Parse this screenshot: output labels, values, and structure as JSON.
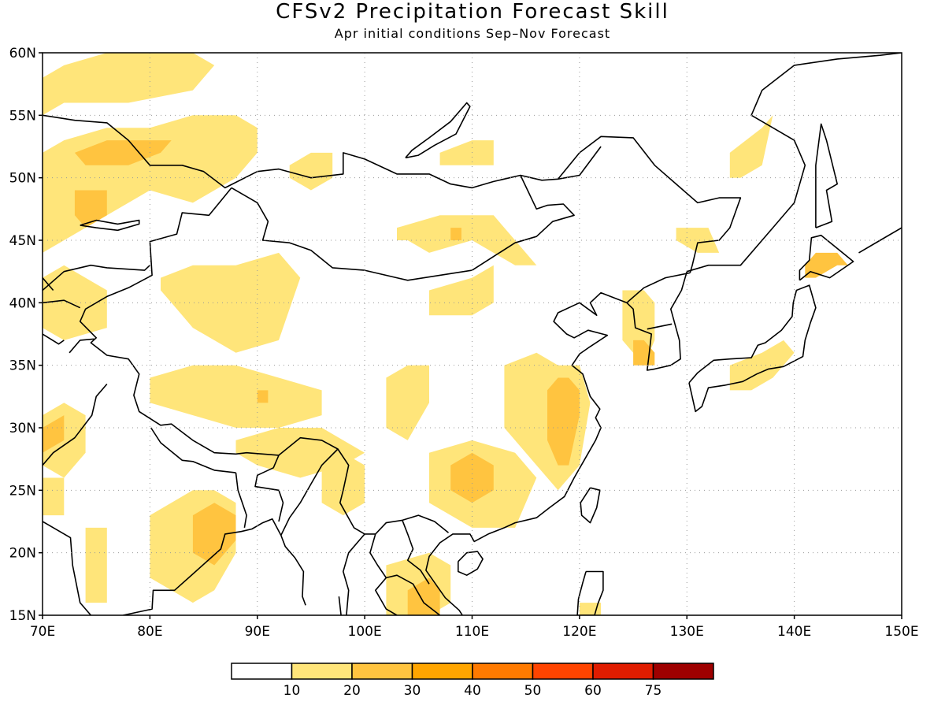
{
  "title": "CFSv2 Precipitation Forecast Skill",
  "subtitle": "Apr initial conditions  Sep–Nov Forecast",
  "map": {
    "lon_range": [
      70,
      150
    ],
    "lat_range": [
      15,
      60
    ],
    "lat_ticks": [
      "60N",
      "55N",
      "50N",
      "45N",
      "40N",
      "35N",
      "30N",
      "25N",
      "20N",
      "15N"
    ],
    "lat_values": [
      60,
      55,
      50,
      45,
      40,
      35,
      30,
      25,
      20,
      15
    ],
    "lon_ticks": [
      "70E",
      "80E",
      "90E",
      "100E",
      "110E",
      "120E",
      "130E",
      "140E",
      "150E"
    ],
    "lon_values": [
      70,
      80,
      90,
      100,
      110,
      120,
      130,
      140,
      150
    ],
    "grid": "dotted"
  },
  "colorbar": {
    "colors": [
      "#ffffff",
      "#ffe57a",
      "#ffc440",
      "#ffa500",
      "#ff7a00",
      "#ff4400",
      "#e01c00",
      "#9e0000"
    ],
    "labels": [
      "10",
      "20",
      "30",
      "40",
      "50",
      "60",
      "75"
    ]
  },
  "chart_data": {
    "type": "heatmap",
    "title": "CFSv2 Precipitation Forecast Skill",
    "subtitle": "Apr initial conditions  Sep–Nov Forecast",
    "xrange": [
      70,
      150
    ],
    "yrange": [
      15,
      60
    ],
    "levels": [
      10,
      20,
      30,
      40,
      50,
      60,
      75
    ],
    "regions": [
      {
        "level": 10,
        "lon": [
          70,
          72,
          76,
          80,
          84,
          86,
          84,
          78,
          72,
          70
        ],
        "lat": [
          58,
          59,
          60,
          60,
          60,
          59,
          57,
          56,
          56,
          55
        ]
      },
      {
        "level": 10,
        "lon": [
          70,
          72,
          76,
          80,
          84,
          88,
          90,
          90,
          88,
          84,
          80,
          76,
          74,
          72,
          70
        ],
        "lat": [
          52,
          53,
          54,
          54,
          55,
          55,
          54,
          52,
          50,
          48,
          49,
          47,
          46,
          45,
          44
        ]
      },
      {
        "level": 20,
        "lon": [
          73,
          76,
          80,
          82,
          81,
          78,
          74
        ],
        "lat": [
          52,
          53,
          53,
          53,
          52,
          51,
          51
        ]
      },
      {
        "level": 20,
        "lon": [
          73,
          76,
          76,
          74,
          73
        ],
        "lat": [
          49,
          49,
          47,
          46,
          47
        ]
      },
      {
        "level": 10,
        "lon": [
          93,
          95,
          97,
          97,
          95,
          93
        ],
        "lat": [
          51,
          52,
          52,
          50,
          49,
          50
        ]
      },
      {
        "level": 10,
        "lon": [
          107,
          110,
          112,
          112,
          110,
          107
        ],
        "lat": [
          52,
          53,
          53,
          51,
          51,
          51
        ]
      },
      {
        "level": 10,
        "lon": [
          134,
          137,
          138,
          137,
          135,
          134
        ],
        "lat": [
          52,
          54,
          55,
          51,
          50,
          50
        ]
      },
      {
        "level": 10,
        "lon": [
          103,
          107,
          110,
          112,
          114,
          116,
          114,
          110,
          106,
          104,
          103
        ],
        "lat": [
          46,
          47,
          47,
          47,
          45,
          43,
          43,
          45,
          44,
          45,
          45
        ]
      },
      {
        "level": 20,
        "lon": [
          108,
          109,
          109,
          108
        ],
        "lat": [
          46,
          46,
          45,
          45
        ]
      },
      {
        "level": 10,
        "lon": [
          106,
          110,
          112,
          112,
          110,
          106
        ],
        "lat": [
          41,
          42,
          43,
          40,
          39,
          39
        ]
      },
      {
        "level": 10,
        "lon": [
          129,
          132,
          133,
          131,
          129
        ],
        "lat": [
          46,
          46,
          44,
          44,
          45
        ]
      },
      {
        "level": 10,
        "lon": [
          81,
          84,
          88,
          92,
          94,
          92,
          88,
          84,
          82,
          81
        ],
        "lat": [
          42,
          43,
          43,
          44,
          42,
          37,
          36,
          38,
          40,
          41
        ]
      },
      {
        "level": 10,
        "lon": [
          70,
          72,
          76,
          76,
          72,
          70
        ],
        "lat": [
          42,
          43,
          41,
          38,
          37,
          38
        ]
      },
      {
        "level": 10,
        "lon": [
          80,
          84,
          88,
          92,
          96,
          96,
          92,
          88,
          84,
          80
        ],
        "lat": [
          34,
          35,
          35,
          34,
          33,
          31,
          30,
          30,
          31,
          32
        ]
      },
      {
        "level": 20,
        "lon": [
          90,
          91,
          91,
          90
        ],
        "lat": [
          33,
          33,
          32,
          32
        ]
      },
      {
        "level": 10,
        "lon": [
          70,
          72,
          74,
          74,
          72,
          70
        ],
        "lat": [
          31,
          32,
          31,
          28,
          26,
          27
        ]
      },
      {
        "level": 20,
        "lon": [
          70,
          72,
          72,
          70
        ],
        "lat": [
          30,
          31,
          29,
          28
        ]
      },
      {
        "level": 10,
        "lon": [
          70,
          72,
          72,
          70
        ],
        "lat": [
          26,
          26,
          23,
          23
        ]
      },
      {
        "level": 10,
        "lon": [
          74,
          76,
          76,
          74
        ],
        "lat": [
          22,
          22,
          16,
          16
        ]
      },
      {
        "level": 10,
        "lon": [
          80,
          84,
          86,
          88,
          88,
          86,
          84,
          80
        ],
        "lat": [
          23,
          25,
          25,
          24,
          20,
          17,
          16,
          18
        ]
      },
      {
        "level": 20,
        "lon": [
          84,
          86,
          88,
          88,
          86,
          84
        ],
        "lat": [
          23,
          24,
          23,
          21,
          19,
          20
        ]
      },
      {
        "level": 10,
        "lon": [
          88,
          92,
          96,
          98,
          100,
          98,
          94,
          90,
          88
        ],
        "lat": [
          29,
          30,
          30,
          29,
          28,
          27,
          26,
          27,
          28
        ]
      },
      {
        "level": 10,
        "lon": [
          96,
          98,
          100,
          100,
          98,
          96
        ],
        "lat": [
          28,
          28,
          27,
          24,
          23,
          24
        ]
      },
      {
        "level": 10,
        "lon": [
          102,
          104,
          106,
          106,
          104,
          102
        ],
        "lat": [
          34,
          35,
          35,
          32,
          29,
          30
        ]
      },
      {
        "level": 10,
        "lon": [
          106,
          110,
          114,
          116,
          114,
          110,
          106
        ],
        "lat": [
          28,
          29,
          28,
          26,
          22,
          22,
          24
        ]
      },
      {
        "level": 20,
        "lon": [
          108,
          110,
          112,
          112,
          110,
          108
        ],
        "lat": [
          27,
          28,
          27,
          25,
          24,
          25
        ]
      },
      {
        "level": 10,
        "lon": [
          113,
          116,
          118,
          120,
          121,
          120,
          118,
          116,
          113
        ],
        "lat": [
          35,
          36,
          35,
          35,
          32,
          27,
          25,
          27,
          30
        ]
      },
      {
        "level": 20,
        "lon": [
          117,
          118,
          119,
          120,
          120,
          119,
          118,
          117
        ],
        "lat": [
          33,
          34,
          34,
          33,
          31,
          27,
          27,
          29
        ]
      },
      {
        "level": 10,
        "lon": [
          124,
          126,
          127,
          127,
          126,
          124
        ],
        "lat": [
          41,
          41,
          40,
          37,
          35,
          37
        ]
      },
      {
        "level": 20,
        "lon": [
          125,
          126,
          127,
          127,
          125
        ],
        "lat": [
          37,
          37,
          36,
          35,
          35
        ]
      },
      {
        "level": 10,
        "lon": [
          134,
          137,
          139,
          140,
          138,
          136,
          134
        ],
        "lat": [
          35,
          36,
          37,
          36,
          34,
          33,
          33
        ]
      },
      {
        "level": 20,
        "lon": [
          141,
          142,
          144,
          145,
          144,
          142,
          141
        ],
        "lat": [
          43,
          44,
          44,
          43,
          43,
          42,
          42
        ]
      },
      {
        "level": 10,
        "lon": [
          102,
          106,
          108,
          108,
          106,
          102
        ],
        "lat": [
          19,
          20,
          19,
          16,
          15,
          15
        ]
      },
      {
        "level": 20,
        "lon": [
          104,
          106,
          107,
          107,
          105,
          104
        ],
        "lat": [
          17,
          18,
          17,
          15,
          15,
          15
        ]
      },
      {
        "level": 10,
        "lon": [
          120,
          121,
          122,
          122,
          120
        ],
        "lat": [
          16,
          16,
          16,
          15,
          15
        ]
      }
    ]
  }
}
